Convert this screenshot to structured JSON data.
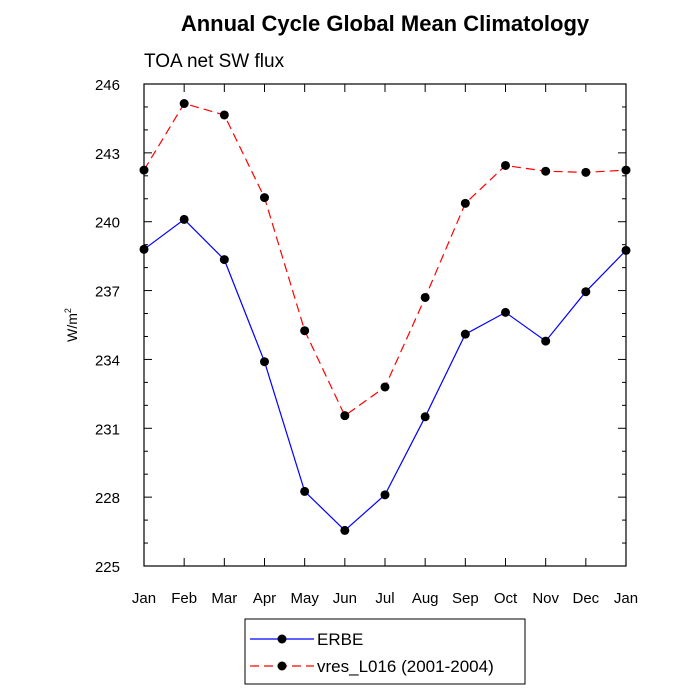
{
  "chart_data": {
    "type": "line",
    "title": "Annual Cycle Global Mean Climatology",
    "subtitle": "TOA net SW flux",
    "xlabel": "",
    "ylabel": "W/m",
    "ylabel_superscript": "2",
    "categories": [
      "Jan",
      "Feb",
      "Mar",
      "Apr",
      "May",
      "Jun",
      "Jul",
      "Aug",
      "Sep",
      "Oct",
      "Nov",
      "Dec",
      "Jan"
    ],
    "ylim": [
      225,
      246
    ],
    "yticks": [
      225,
      228,
      231,
      234,
      237,
      240,
      243,
      246
    ],
    "grid": false,
    "legend_position": "bottom",
    "series": [
      {
        "name": "ERBE",
        "color": "#0000ff",
        "line_style": "solid",
        "marker": "filled-circle",
        "values": [
          238.8,
          240.1,
          238.35,
          233.9,
          228.25,
          226.55,
          228.1,
          231.5,
          235.1,
          236.05,
          234.8,
          236.95,
          238.75
        ]
      },
      {
        "name": "vres_L016 (2001-2004)",
        "color": "#ff0000",
        "line_style": "dashed",
        "marker": "filled-circle",
        "values": [
          242.25,
          245.15,
          244.65,
          241.05,
          235.25,
          231.55,
          232.8,
          236.7,
          240.8,
          242.45,
          242.2,
          242.15,
          242.25
        ]
      }
    ]
  }
}
